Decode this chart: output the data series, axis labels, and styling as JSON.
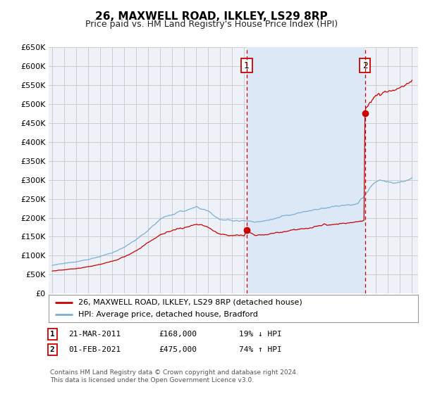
{
  "title": "26, MAXWELL ROAD, ILKLEY, LS29 8RP",
  "subtitle": "Price paid vs. HM Land Registry's House Price Index (HPI)",
  "ylim": [
    0,
    650000
  ],
  "ytick_vals": [
    0,
    50000,
    100000,
    150000,
    200000,
    250000,
    300000,
    350000,
    400000,
    450000,
    500000,
    550000,
    600000,
    650000
  ],
  "xlim_start": 1994.7,
  "xlim_end": 2025.5,
  "plot_bg_color": "#eef2f8",
  "shade_color": "#dce8f5",
  "fig_bg_color": "#ffffff",
  "grid_color": "#cccccc",
  "red_line_color": "#cc0000",
  "blue_line_color": "#7aafd4",
  "transaction1_x": 2011.22,
  "transaction1_y": 168000,
  "transaction2_x": 2021.08,
  "transaction2_y": 475000,
  "legend_label1": "26, MAXWELL ROAD, ILKLEY, LS29 8RP (detached house)",
  "legend_label2": "HPI: Average price, detached house, Bradford",
  "table_row1": [
    "1",
    "21-MAR-2011",
    "£168,000",
    "19% ↓ HPI"
  ],
  "table_row2": [
    "2",
    "01-FEB-2021",
    "£475,000",
    "74% ↑ HPI"
  ],
  "footnote": "Contains HM Land Registry data © Crown copyright and database right 2024.\nThis data is licensed under the Open Government Licence v3.0."
}
